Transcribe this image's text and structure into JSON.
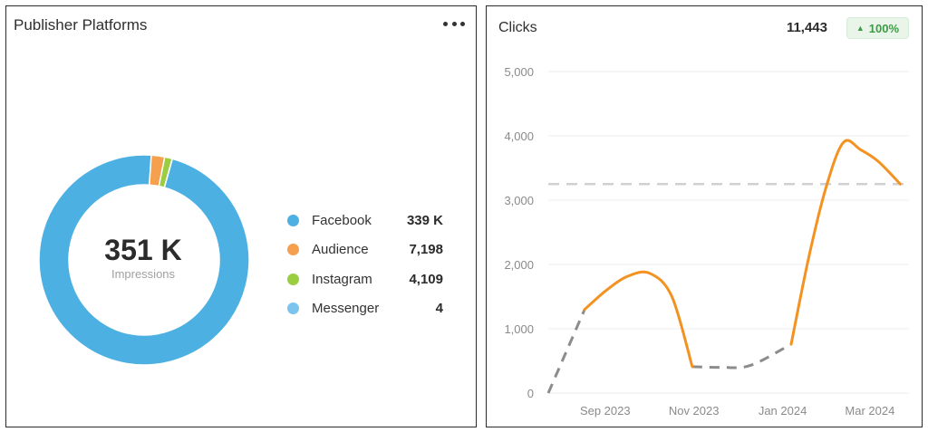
{
  "publisher_platforms": {
    "title": "Publisher Platforms",
    "more_icon": "more-horizontal-icon",
    "total_value": "351 K",
    "total_label": "Impressions",
    "legend": [
      {
        "name": "Facebook",
        "value": "339 K",
        "color": "#4db0e3"
      },
      {
        "name": "Audience",
        "value": "7,198",
        "color": "#f5a04f"
      },
      {
        "name": "Instagram",
        "value": "4,109",
        "color": "#9acd3f"
      },
      {
        "name": "Messenger",
        "value": "4",
        "color": "#7cc4ee"
      }
    ]
  },
  "clicks": {
    "title": "Clicks",
    "total": "11,443",
    "change": "100%",
    "change_icon": "triangle-up-icon",
    "change_color": "#3d9a45"
  },
  "chart_data": [
    {
      "type": "pie",
      "variant": "donut",
      "categories": [
        "Facebook",
        "Audience",
        "Instagram",
        "Messenger"
      ],
      "values": [
        339000,
        7198,
        4109,
        4
      ],
      "colors": [
        "#4db0e3",
        "#f5a04f",
        "#9acd3f",
        "#7cc4ee"
      ]
    },
    {
      "type": "line",
      "x_ticks": [
        "Sep 2023",
        "Nov 2023",
        "Jan 2024",
        "Mar 2024"
      ],
      "y_ticks": [
        "0",
        "1,000",
        "2,000",
        "3,000",
        "4,000",
        "5,000"
      ],
      "ylim": [
        0,
        5000
      ],
      "xlim": [
        "2023-07-27",
        "2024-03-31"
      ],
      "reference_line": 3250,
      "series": [
        {
          "color": "#f39221",
          "x": [
            "2023-08-21",
            "2023-09-05",
            "2023-09-20",
            "2023-10-05",
            "2023-10-20",
            "2023-11-03",
            "2024-01-10",
            "2024-01-22",
            "2024-02-03",
            "2024-02-15",
            "2024-02-27",
            "2024-03-10",
            "2024-03-25"
          ],
          "values": [
            1300,
            1600,
            1820,
            1860,
            1500,
            410,
            760,
            2100,
            3200,
            3900,
            3780,
            3600,
            3250
          ]
        },
        {
          "color": "#8c8c8c",
          "style": "dashed",
          "x": [
            "2023-07-27",
            "2023-08-21",
            "2023-11-03",
            "2023-11-23",
            "2023-12-13",
            "2024-01-10"
          ],
          "values": [
            0,
            1300,
            410,
            400,
            430,
            760
          ]
        }
      ]
    }
  ]
}
